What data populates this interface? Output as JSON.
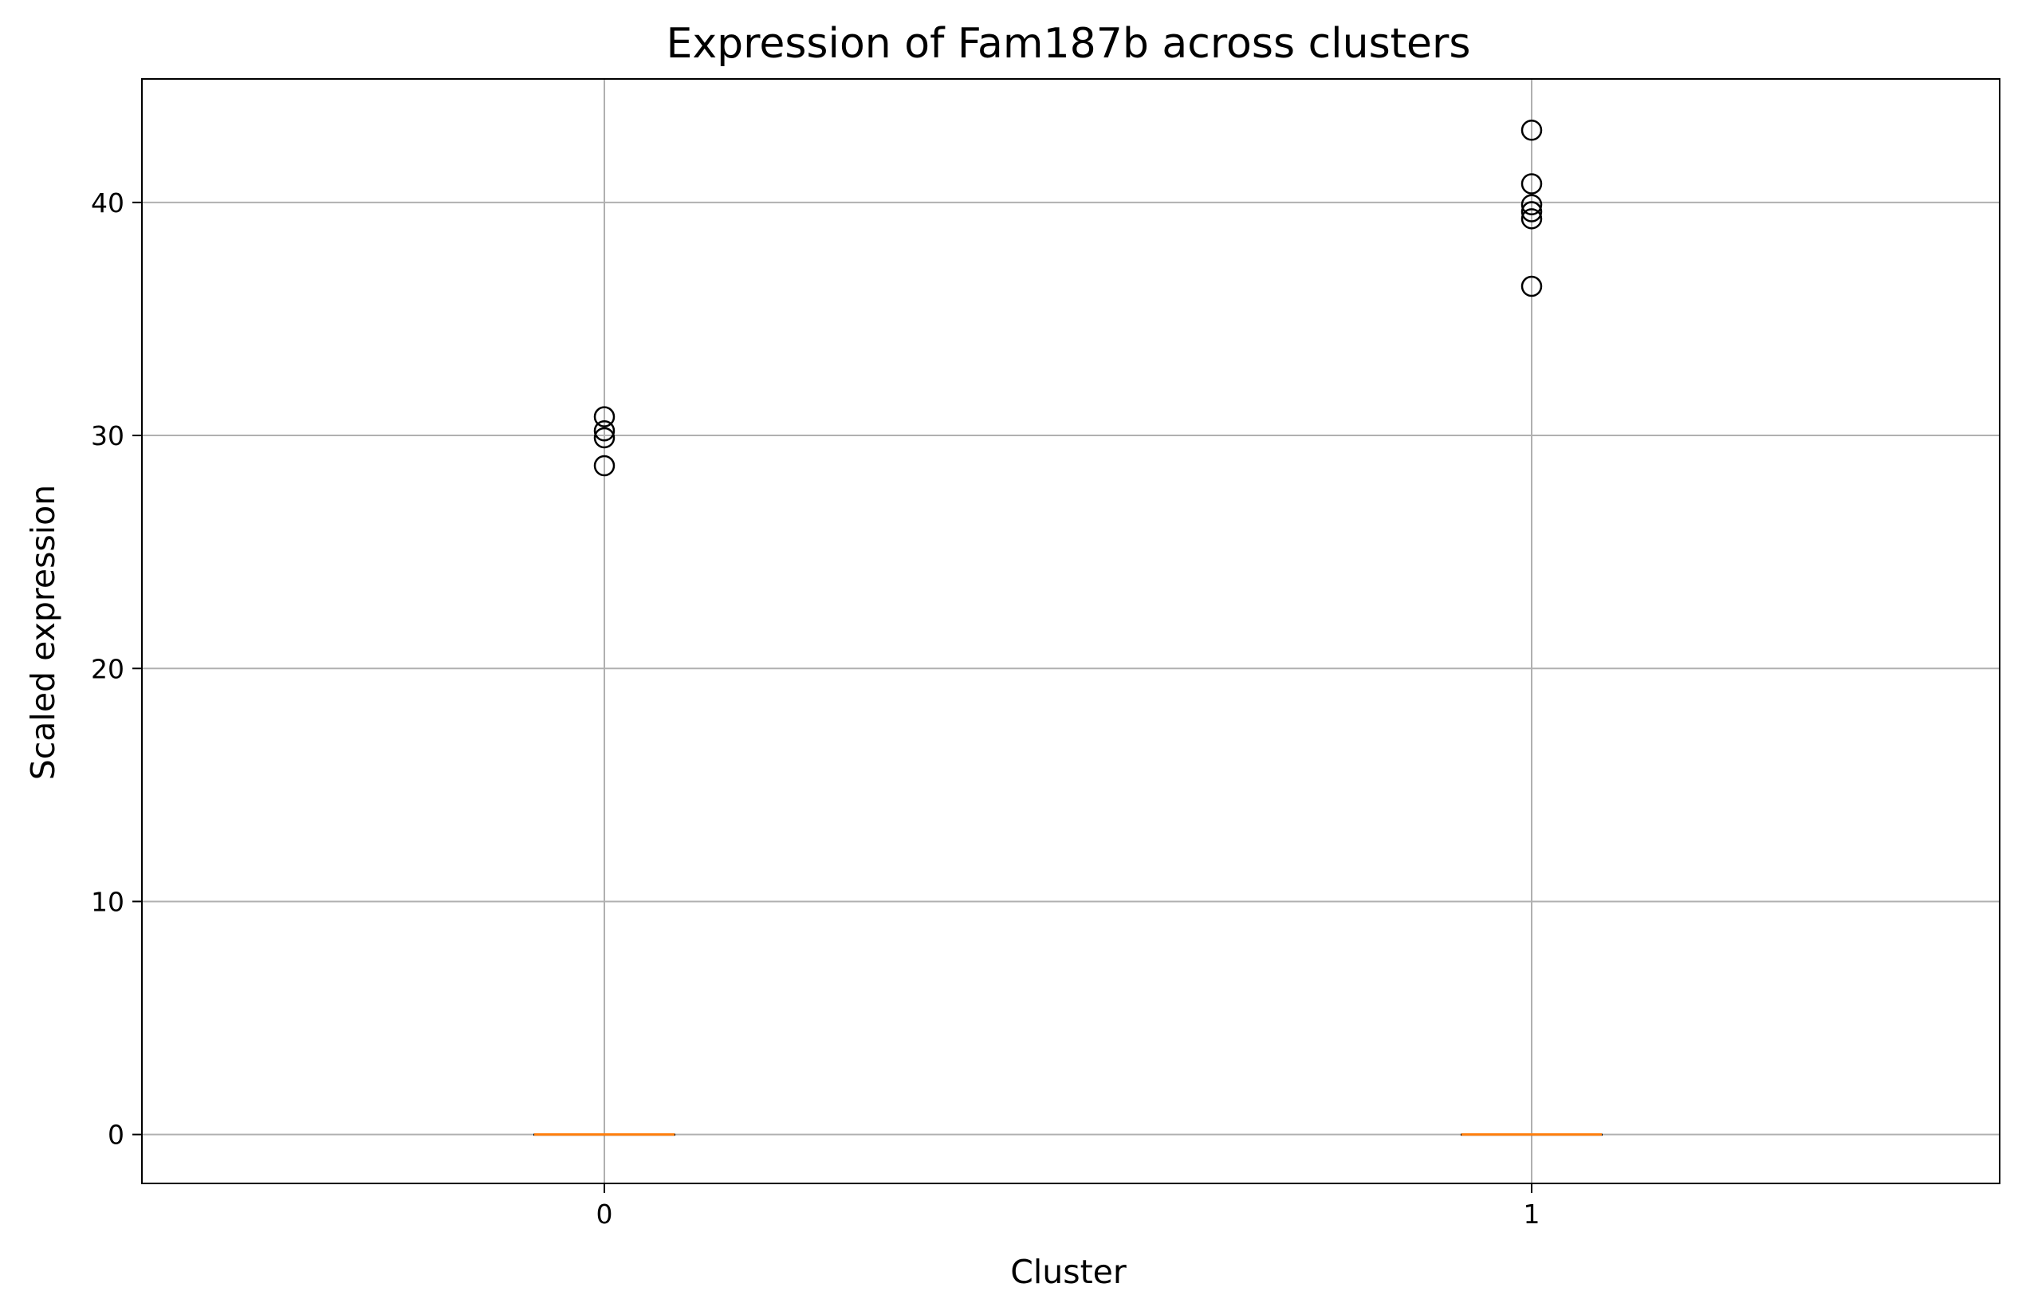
{
  "chart_data": {
    "type": "box",
    "title": "Expression of Fam187b across clusters",
    "xlabel": "Cluster",
    "ylabel": "Scaled expression",
    "categories": [
      "0",
      "1"
    ],
    "ylim": [
      -2.1,
      45.3
    ],
    "yticks": [
      0,
      10,
      20,
      30,
      40
    ],
    "grid": true,
    "boxes": [
      {
        "category": "0",
        "q1": 0,
        "median": 0,
        "q3": 0,
        "whisker_low": 0,
        "whisker_high": 0,
        "outliers": [
          30.8,
          30.2,
          29.9,
          28.7
        ]
      },
      {
        "category": "1",
        "q1": 0,
        "median": 0,
        "q3": 0,
        "whisker_low": 0,
        "whisker_high": 0,
        "outliers": [
          43.1,
          40.8,
          39.9,
          39.6,
          39.3,
          36.4
        ]
      }
    ],
    "colors": {
      "median": "#ff7f0e",
      "grid": "#b0b0b0",
      "outlier": "#000000",
      "axes": "#000000"
    }
  }
}
